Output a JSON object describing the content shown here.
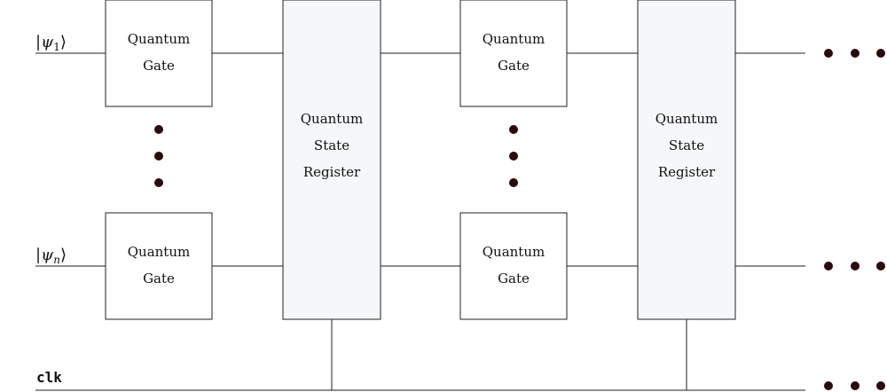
{
  "inputs": {
    "top": {
      "ket_open": "|",
      "symbol": "ψ",
      "subscript": "1",
      "ket_close": "⟩"
    },
    "bottom": {
      "ket_open": "|",
      "symbol": "ψ",
      "subscript": "n",
      "ket_close": "⟩"
    }
  },
  "clock_label": "clk",
  "gate_label": [
    "Quantum",
    "Gate"
  ],
  "register_label": [
    "Quantum",
    "State",
    "Register"
  ],
  "colors": {
    "wire": "#222222",
    "dot": "#2b0b0b",
    "register_fill": "#f6f7f9"
  }
}
